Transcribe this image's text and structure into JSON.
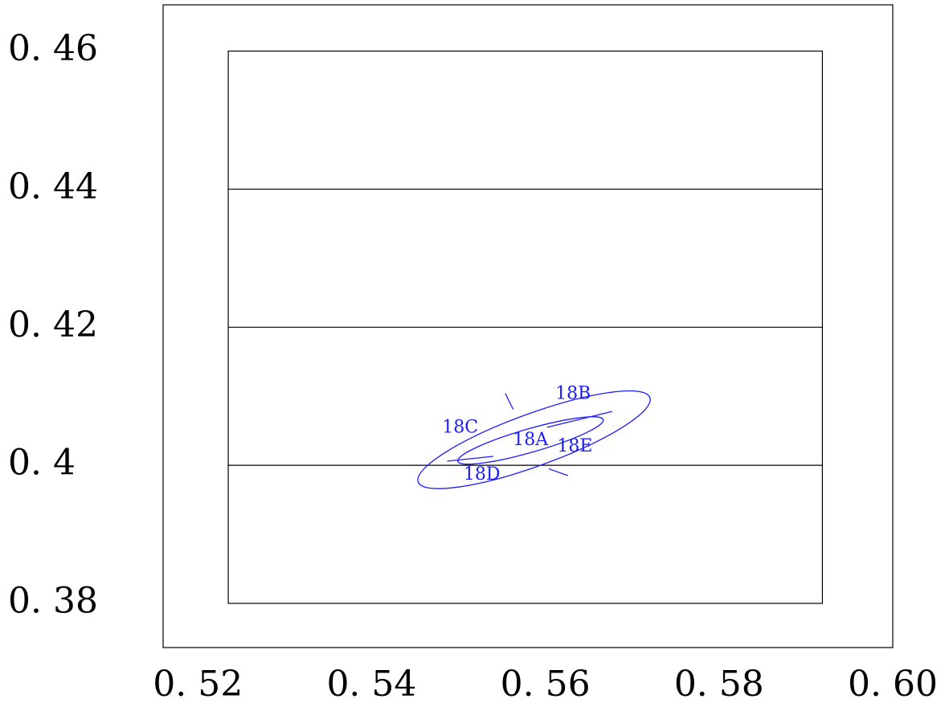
{
  "chart_data": {
    "type": "scatter",
    "title": "",
    "xlabel": "",
    "ylabel": "",
    "xlim": [
      0.516,
      0.6
    ],
    "ylim": [
      0.3736,
      0.4667
    ],
    "x_ticks": [
      {
        "value": 0.52,
        "label": "0. 52"
      },
      {
        "value": 0.54,
        "label": "0. 54"
      },
      {
        "value": 0.56,
        "label": "0. 56"
      },
      {
        "value": 0.58,
        "label": "0. 58"
      },
      {
        "value": 0.6,
        "label": "0. 60"
      }
    ],
    "y_ticks": [
      {
        "value": 0.46,
        "label": "0. 46"
      },
      {
        "value": 0.44,
        "label": "0. 44"
      },
      {
        "value": 0.42,
        "label": "0. 42"
      },
      {
        "value": 0.4,
        "label": "0. 4"
      },
      {
        "value": 0.38,
        "label": "0. 38"
      }
    ],
    "inner_frame": {
      "x": [
        0.5235,
        0.5919
      ],
      "y": [
        0.38,
        0.46
      ]
    },
    "grid": {
      "horizontal_lines": [
        0.4,
        0.42,
        0.44
      ]
    },
    "region_color": "#1c1cff",
    "regions": {
      "outer_ellipse": {
        "center": [
          0.5587,
          0.4037
        ],
        "rx": 0.0142,
        "ry": 0.0038,
        "rotation_deg": -20
      },
      "inner_ellipse": {
        "center": [
          0.5583,
          0.4036
        ],
        "rx": 0.0087,
        "ry": 0.0017,
        "rotation_deg": -16
      },
      "dividers": [
        {
          "from": [
            0.5554,
            0.4104
          ],
          "to": [
            0.5563,
            0.4081
          ]
        },
        {
          "from": [
            0.5677,
            0.4078
          ],
          "to": [
            0.5602,
            0.4055
          ]
        },
        {
          "from": [
            0.5487,
            0.4006
          ],
          "to": [
            0.554,
            0.4013
          ]
        },
        {
          "from": [
            0.5604,
            0.3995
          ],
          "to": [
            0.5626,
            0.3985
          ]
        }
      ],
      "labels": [
        {
          "text": "18A",
          "x": 0.5583,
          "y": 0.4036
        },
        {
          "text": "18B",
          "x": 0.5632,
          "y": 0.4103
        },
        {
          "text": "18C",
          "x": 0.5502,
          "y": 0.4054
        },
        {
          "text": "18D",
          "x": 0.5527,
          "y": 0.3986
        },
        {
          "text": "18E",
          "x": 0.5634,
          "y": 0.4027
        }
      ]
    }
  }
}
